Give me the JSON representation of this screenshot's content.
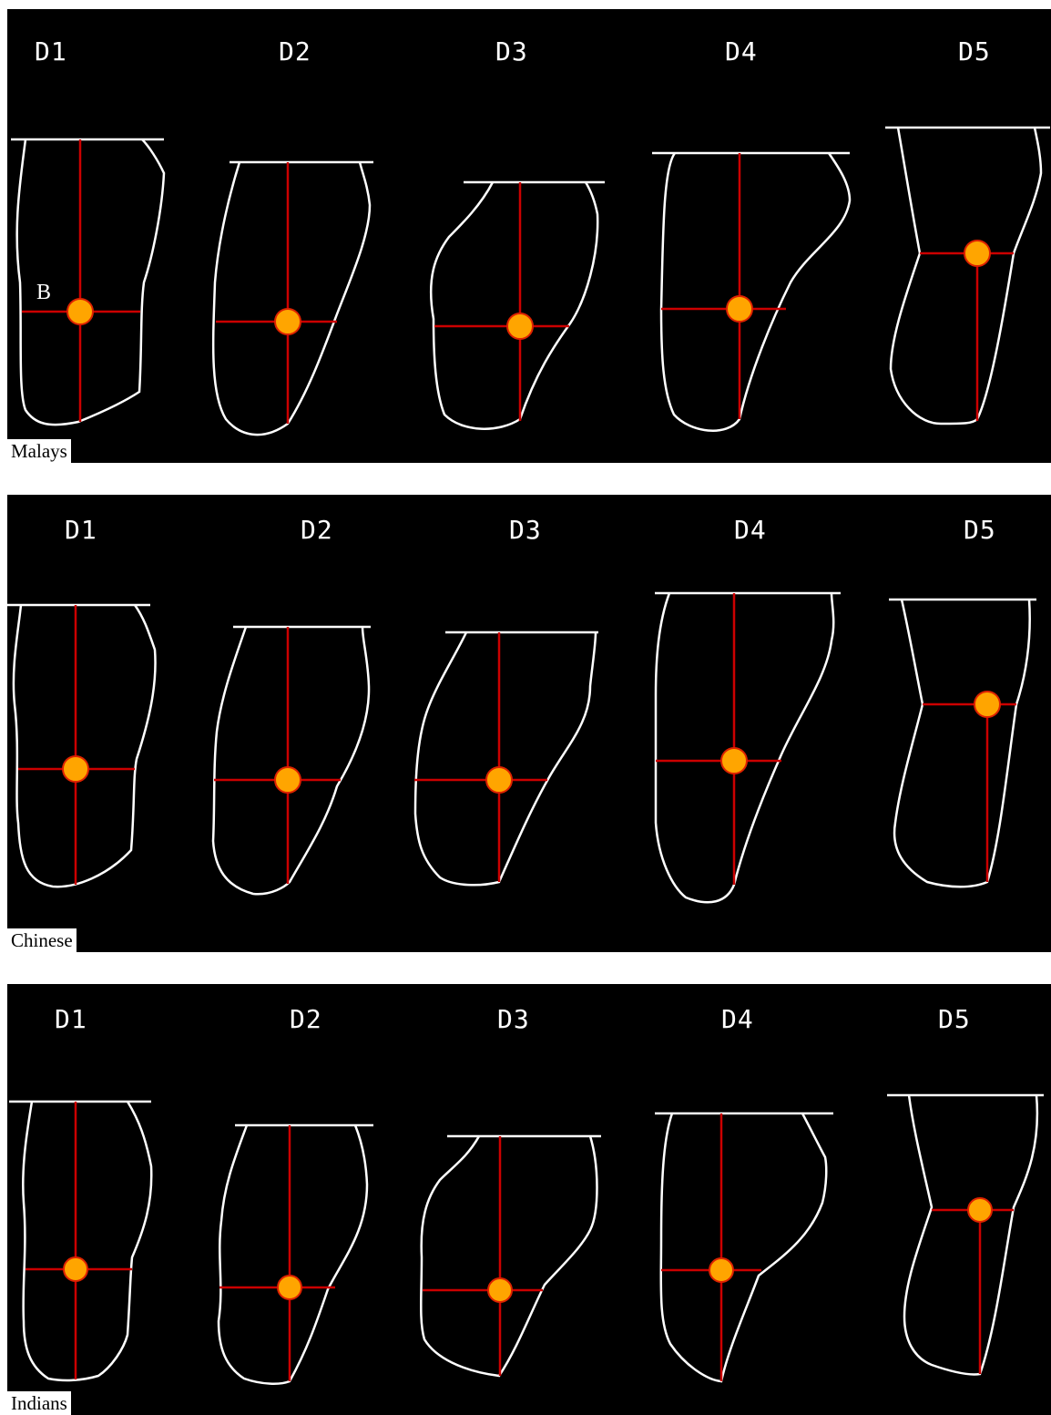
{
  "columns": [
    "D1",
    "D2",
    "D3",
    "D4",
    "D5"
  ],
  "panels": [
    {
      "group": "Malays",
      "point_label": "B"
    },
    {
      "group": "Chinese",
      "point_label": ""
    },
    {
      "group": "Indians",
      "point_label": ""
    }
  ],
  "colors": {
    "background": "#000000",
    "outline": "#ffffff",
    "axis_lines": "#cc0000",
    "marker_fill": "#ffa500",
    "marker_stroke": "#dd2200"
  }
}
